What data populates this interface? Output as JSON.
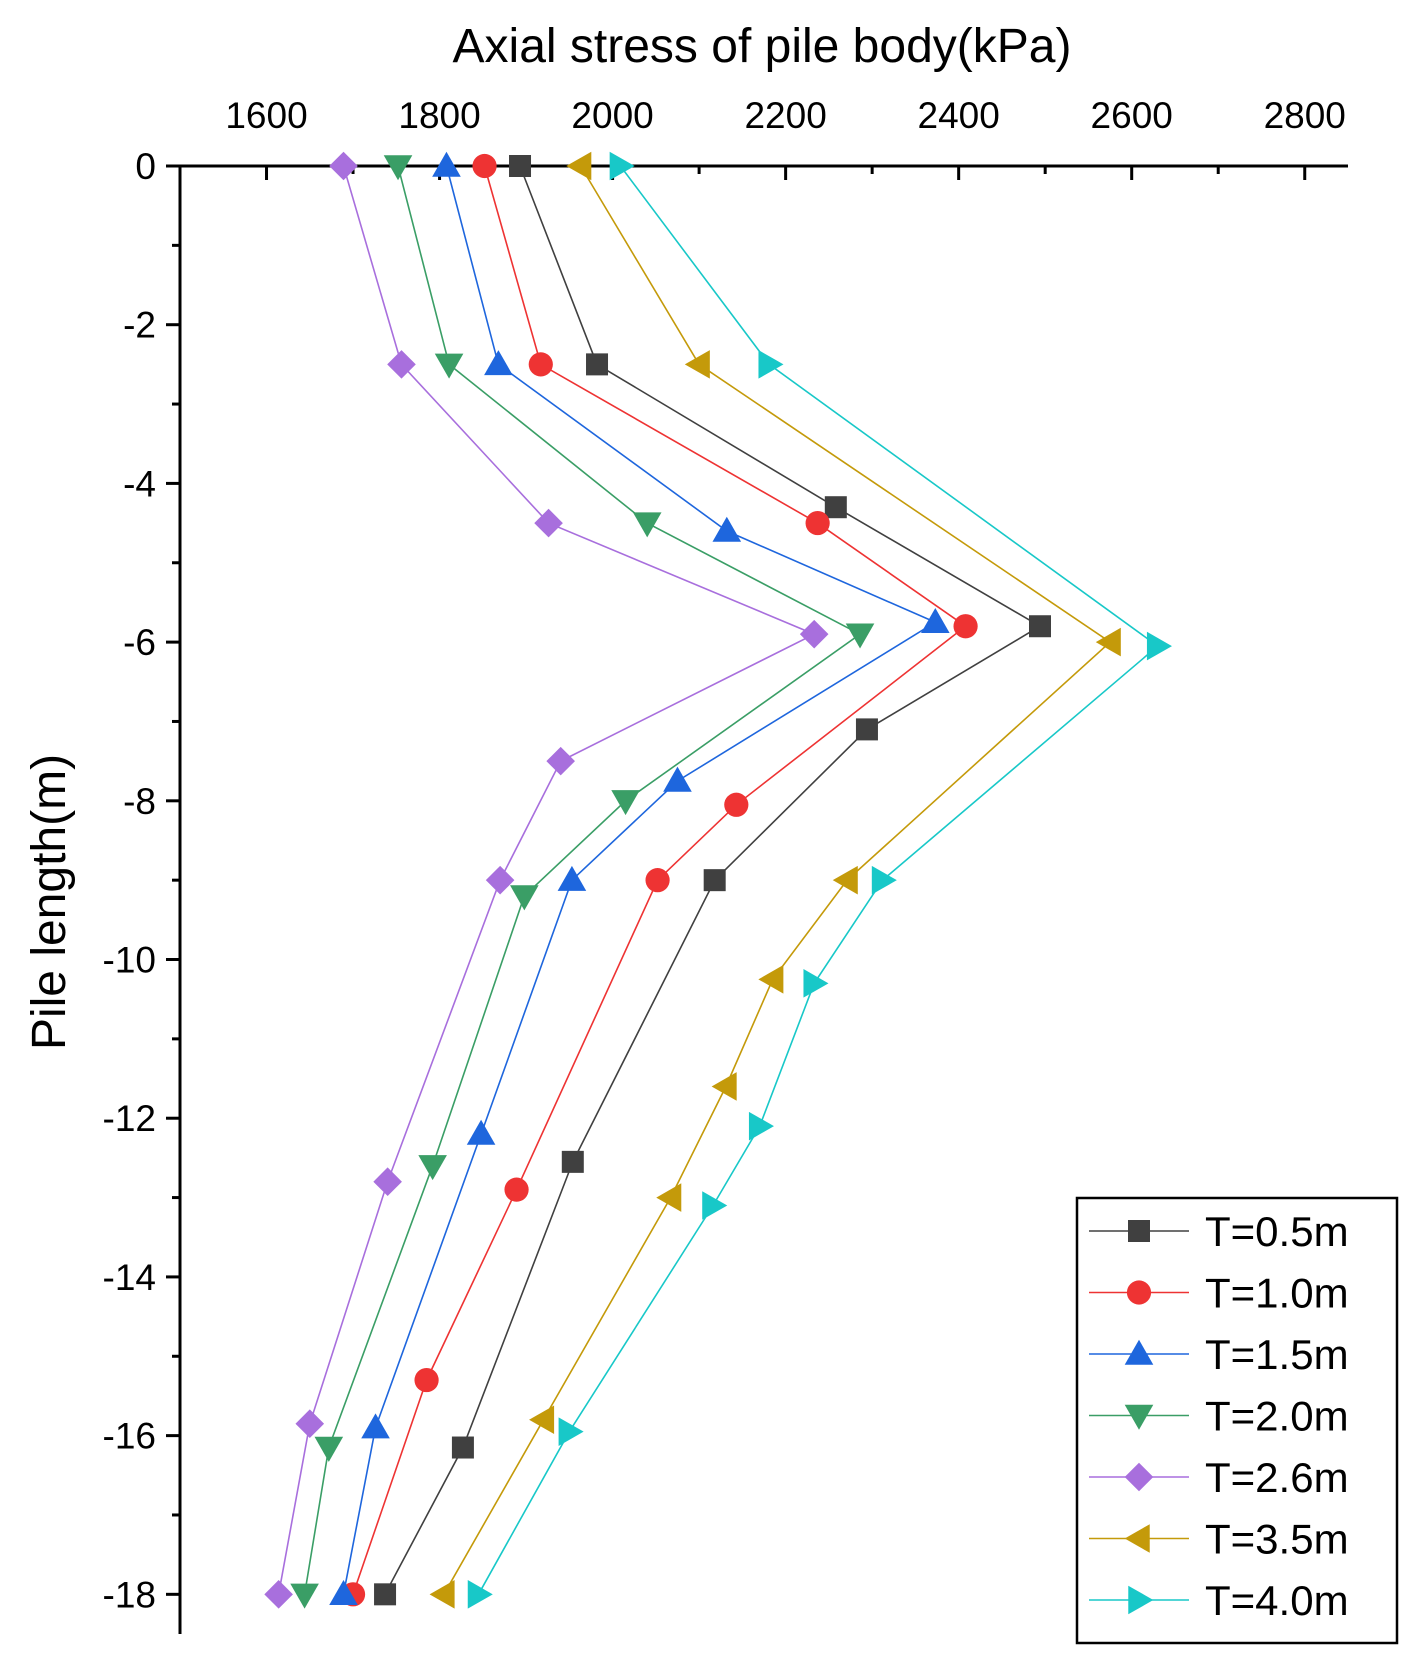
{
  "chart_data": {
    "type": "line",
    "title": "",
    "xlabel": "Axial stress of pile body(kPa)",
    "ylabel": "Pile length(m)",
    "xlim": [
      1500,
      2850
    ],
    "ylim": [
      -18.5,
      0
    ],
    "xticks": [
      1600,
      1800,
      2000,
      2200,
      2400,
      2600,
      2800
    ],
    "yticks": [
      0,
      -2,
      -4,
      -6,
      -8,
      -10,
      -12,
      -14,
      -16,
      -18
    ],
    "grid": false,
    "legend_position": "bottom-right",
    "series": [
      {
        "name": "T=0.5m",
        "color": "#404040",
        "marker": "square",
        "points": [
          [
            1893,
            0
          ],
          [
            1982,
            -2.5
          ],
          [
            2258,
            -4.3
          ],
          [
            2494,
            -5.8
          ],
          [
            2294,
            -7.1
          ],
          [
            2118,
            -9.0
          ],
          [
            1954,
            -12.55
          ],
          [
            1827,
            -16.15
          ],
          [
            1737,
            -18.0
          ]
        ]
      },
      {
        "name": "T=1.0m",
        "color": "#ee3333",
        "marker": "circle",
        "points": [
          [
            1852,
            0
          ],
          [
            1917,
            -2.5
          ],
          [
            2237,
            -4.5
          ],
          [
            2408,
            -5.8
          ],
          [
            2143,
            -8.05
          ],
          [
            2052,
            -9.0
          ],
          [
            1889,
            -12.9
          ],
          [
            1785,
            -15.3
          ],
          [
            1700,
            -18.0
          ]
        ]
      },
      {
        "name": "T=1.5m",
        "color": "#1e66dd",
        "marker": "triangle-up",
        "points": [
          [
            1808,
            0
          ],
          [
            1868,
            -2.5
          ],
          [
            2132,
            -4.6
          ],
          [
            2373,
            -5.75
          ],
          [
            2075,
            -7.75
          ],
          [
            1953,
            -9.0
          ],
          [
            1848,
            -12.2
          ],
          [
            1726,
            -15.9
          ],
          [
            1689,
            -18.0
          ]
        ]
      },
      {
        "name": "T=2.0m",
        "color": "#3a9e66",
        "marker": "triangle-down",
        "points": [
          [
            1752,
            0
          ],
          [
            1811,
            -2.5
          ],
          [
            2040,
            -4.5
          ],
          [
            2286,
            -5.9
          ],
          [
            2015,
            -8.0
          ],
          [
            1898,
            -9.2
          ],
          [
            1792,
            -12.6
          ],
          [
            1672,
            -16.15
          ],
          [
            1644,
            -18.0
          ]
        ]
      },
      {
        "name": "T=2.6m",
        "color": "#a86fdd",
        "marker": "diamond",
        "points": [
          [
            1689,
            0
          ],
          [
            1756,
            -2.5
          ],
          [
            1926,
            -4.5
          ],
          [
            2233,
            -5.9
          ],
          [
            1940,
            -7.5
          ],
          [
            1870,
            -9.0
          ],
          [
            1740,
            -12.8
          ],
          [
            1650,
            -15.85
          ],
          [
            1614,
            -18.0
          ]
        ]
      },
      {
        "name": "T=3.5m",
        "color": "#c49a0a",
        "marker": "triangle-left",
        "points": [
          [
            1963,
            0
          ],
          [
            2100,
            -2.5
          ],
          [
            2575,
            -6.0
          ],
          [
            2271,
            -9.0
          ],
          [
            2185,
            -10.25
          ],
          [
            2131,
            -11.6
          ],
          [
            2067,
            -13.0
          ],
          [
            1920,
            -15.8
          ],
          [
            1805,
            -18.0
          ]
        ]
      },
      {
        "name": "T=4.0m",
        "color": "#18c8c8",
        "marker": "triangle-right",
        "points": [
          [
            2009,
            0
          ],
          [
            2181,
            -2.5
          ],
          [
            2630,
            -6.05
          ],
          [
            2312,
            -9.0
          ],
          [
            2233,
            -10.3
          ],
          [
            2170,
            -12.1
          ],
          [
            2116,
            -13.1
          ],
          [
            1950,
            -15.95
          ],
          [
            1845,
            -18.0
          ]
        ]
      }
    ]
  }
}
